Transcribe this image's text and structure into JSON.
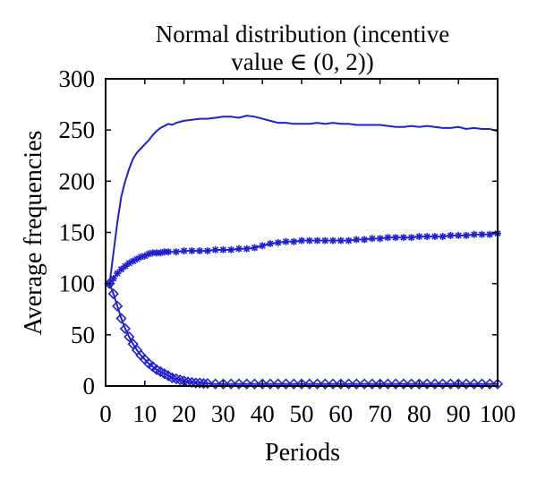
{
  "chart_data": {
    "type": "line",
    "title": [
      "Normal distribution (incentive",
      "value ∈ (0, 2))"
    ],
    "xlabel": "Periods",
    "ylabel": "Average frequencies",
    "xlim": [
      0,
      100
    ],
    "ylim": [
      0,
      300
    ],
    "xticks": [
      0,
      10,
      20,
      30,
      40,
      50,
      60,
      70,
      80,
      90,
      100
    ],
    "yticks": [
      0,
      50,
      100,
      150,
      200,
      250,
      300
    ],
    "grid": false,
    "color": "#2020d0",
    "series": [
      {
        "marker": "none",
        "points": [
          [
            1,
            100
          ],
          [
            2,
            130
          ],
          [
            3,
            160
          ],
          [
            4,
            185
          ],
          [
            5,
            200
          ],
          [
            6,
            212
          ],
          [
            7,
            222
          ],
          [
            8,
            228
          ],
          [
            9,
            232
          ],
          [
            10,
            236
          ],
          [
            11,
            240
          ],
          [
            12,
            245
          ],
          [
            13,
            249
          ],
          [
            14,
            252
          ],
          [
            15,
            254
          ],
          [
            16,
            256
          ],
          [
            17,
            255
          ],
          [
            18,
            257
          ],
          [
            19,
            258
          ],
          [
            20,
            259
          ],
          [
            22,
            260
          ],
          [
            24,
            261
          ],
          [
            26,
            261
          ],
          [
            28,
            262
          ],
          [
            30,
            263
          ],
          [
            32,
            263
          ],
          [
            34,
            262
          ],
          [
            36,
            264
          ],
          [
            38,
            263
          ],
          [
            40,
            261
          ],
          [
            42,
            259
          ],
          [
            44,
            257
          ],
          [
            46,
            257
          ],
          [
            48,
            256
          ],
          [
            50,
            256
          ],
          [
            52,
            256
          ],
          [
            54,
            257
          ],
          [
            56,
            256
          ],
          [
            58,
            257
          ],
          [
            60,
            256
          ],
          [
            62,
            256
          ],
          [
            64,
            255
          ],
          [
            66,
            255
          ],
          [
            68,
            255
          ],
          [
            70,
            255
          ],
          [
            72,
            254
          ],
          [
            74,
            253
          ],
          [
            76,
            253
          ],
          [
            78,
            254
          ],
          [
            80,
            253
          ],
          [
            82,
            254
          ],
          [
            84,
            253
          ],
          [
            86,
            252
          ],
          [
            88,
            252
          ],
          [
            90,
            253
          ],
          [
            92,
            251
          ],
          [
            94,
            252
          ],
          [
            96,
            251
          ],
          [
            98,
            251
          ],
          [
            100,
            249
          ]
        ]
      },
      {
        "marker": "star",
        "points": [
          [
            1,
            100
          ],
          [
            2,
            105
          ],
          [
            3,
            110
          ],
          [
            4,
            114
          ],
          [
            5,
            117
          ],
          [
            6,
            120
          ],
          [
            7,
            122
          ],
          [
            8,
            124
          ],
          [
            9,
            126
          ],
          [
            10,
            127
          ],
          [
            11,
            129
          ],
          [
            12,
            130
          ],
          [
            13,
            130
          ],
          [
            14,
            130
          ],
          [
            15,
            131
          ],
          [
            16,
            131
          ],
          [
            18,
            131
          ],
          [
            20,
            132
          ],
          [
            22,
            132
          ],
          [
            24,
            132
          ],
          [
            26,
            132
          ],
          [
            28,
            133
          ],
          [
            30,
            133
          ],
          [
            32,
            133
          ],
          [
            34,
            134
          ],
          [
            36,
            134
          ],
          [
            38,
            135
          ],
          [
            40,
            137
          ],
          [
            42,
            139
          ],
          [
            44,
            140
          ],
          [
            46,
            141
          ],
          [
            48,
            141
          ],
          [
            50,
            142
          ],
          [
            52,
            142
          ],
          [
            54,
            142
          ],
          [
            56,
            142
          ],
          [
            58,
            142
          ],
          [
            60,
            142
          ],
          [
            62,
            142
          ],
          [
            64,
            143
          ],
          [
            66,
            143
          ],
          [
            68,
            144
          ],
          [
            70,
            144
          ],
          [
            72,
            145
          ],
          [
            74,
            145
          ],
          [
            76,
            145
          ],
          [
            78,
            145
          ],
          [
            80,
            146
          ],
          [
            82,
            146
          ],
          [
            84,
            146
          ],
          [
            86,
            146
          ],
          [
            88,
            147
          ],
          [
            90,
            147
          ],
          [
            92,
            147
          ],
          [
            94,
            148
          ],
          [
            96,
            148
          ],
          [
            98,
            148
          ],
          [
            100,
            149
          ]
        ]
      },
      {
        "marker": "diamond",
        "points": [
          [
            1,
            100
          ],
          [
            2,
            90
          ],
          [
            3,
            78
          ],
          [
            4,
            66
          ],
          [
            5,
            56
          ],
          [
            6,
            48
          ],
          [
            7,
            41
          ],
          [
            8,
            35
          ],
          [
            9,
            30
          ],
          [
            10,
            26
          ],
          [
            11,
            22
          ],
          [
            12,
            19
          ],
          [
            13,
            16
          ],
          [
            14,
            14
          ],
          [
            15,
            12
          ],
          [
            16,
            10
          ],
          [
            17,
            8
          ],
          [
            18,
            7
          ],
          [
            19,
            6
          ],
          [
            20,
            5
          ],
          [
            21,
            4
          ],
          [
            22,
            3.5
          ],
          [
            23,
            3
          ],
          [
            24,
            3
          ],
          [
            25,
            2.5
          ],
          [
            26,
            2.5
          ],
          [
            28,
            2
          ],
          [
            30,
            2
          ],
          [
            32,
            2
          ],
          [
            34,
            2
          ],
          [
            36,
            2
          ],
          [
            38,
            2
          ],
          [
            40,
            2
          ],
          [
            42,
            2
          ],
          [
            44,
            2
          ],
          [
            46,
            2
          ],
          [
            48,
            2
          ],
          [
            50,
            2
          ],
          [
            52,
            2
          ],
          [
            54,
            2
          ],
          [
            56,
            2
          ],
          [
            58,
            2
          ],
          [
            60,
            2
          ],
          [
            62,
            2
          ],
          [
            64,
            2
          ],
          [
            66,
            2
          ],
          [
            68,
            2
          ],
          [
            70,
            2
          ],
          [
            72,
            2
          ],
          [
            74,
            2
          ],
          [
            76,
            2
          ],
          [
            78,
            2
          ],
          [
            80,
            2
          ],
          [
            82,
            2
          ],
          [
            84,
            2
          ],
          [
            86,
            2
          ],
          [
            88,
            2
          ],
          [
            90,
            2
          ],
          [
            92,
            2
          ],
          [
            94,
            2
          ],
          [
            96,
            2
          ],
          [
            98,
            2
          ],
          [
            100,
            2
          ]
        ]
      }
    ]
  }
}
